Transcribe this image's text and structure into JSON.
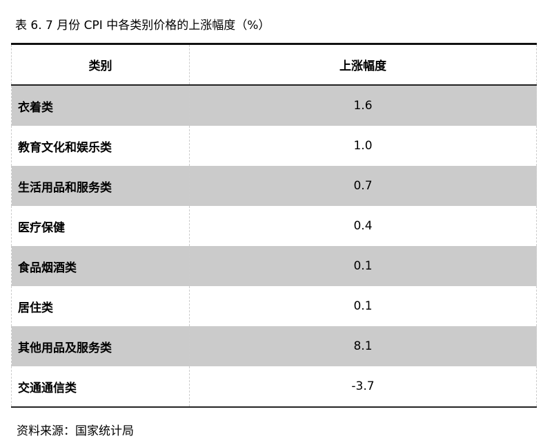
{
  "title": "表 6. 7 月份 CPI 中各类别价格的上涨幅度（%）",
  "headers": [
    "类别",
    "上涨幅度"
  ],
  "rows": [
    {
      "category": "衣着类",
      "value": "1.6"
    },
    {
      "category": "教育文化和娱乐类",
      "value": "1.0"
    },
    {
      "category": "生活用品和服务类",
      "value": "0.7"
    },
    {
      "category": "医疗保健",
      "value": "0.4"
    },
    {
      "category": "食品烟酒类",
      "value": "0.1"
    },
    {
      "category": "居住类",
      "value": "0.1"
    },
    {
      "category": "其他用品及服务类",
      "value": "8.1"
    },
    {
      "category": "交通通信类",
      "value": "-3.7"
    }
  ],
  "source": "资料来源：国家统计局",
  "colors": {
    "shaded_row": "#cbcbcb"
  }
}
